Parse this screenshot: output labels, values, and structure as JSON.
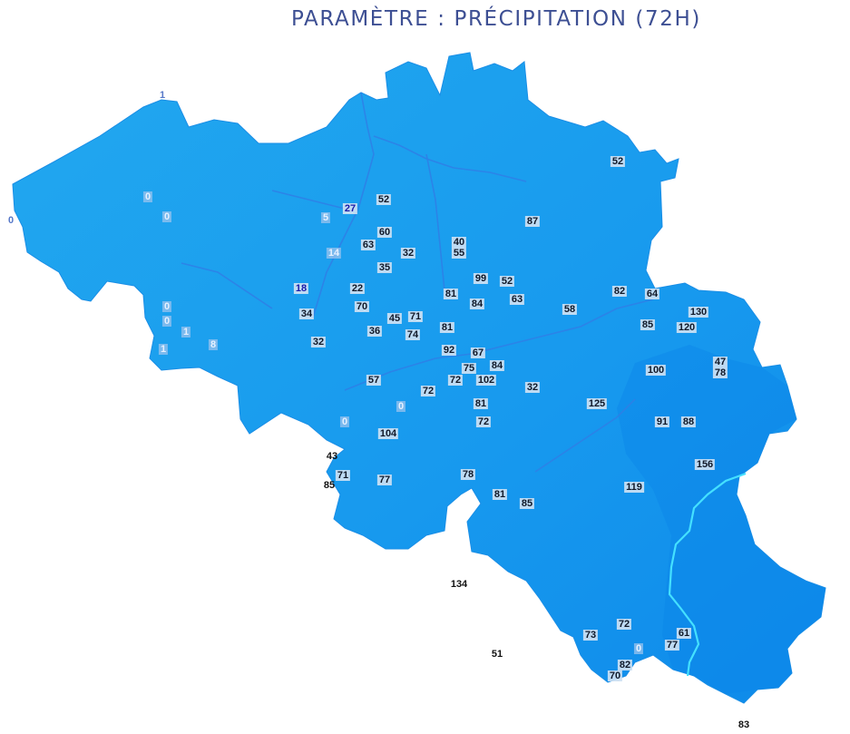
{
  "title": "PARAMÈTRE : PRÉCIPITATION (72H)",
  "colors": {
    "land": "#1ea3ef",
    "land_dark": "#0b86e8",
    "river": "#2f7fe6",
    "border_lux": "#44e0ff",
    "background": "#ffffff",
    "title": "#3d4f93"
  },
  "stations": [
    {
      "value": "1",
      "style": "plainblue"
    },
    {
      "value": "0",
      "style": "plainblue"
    },
    {
      "value": "0",
      "style": "faint"
    },
    {
      "value": "0",
      "style": "faint"
    },
    {
      "value": "52",
      "style": "dark"
    },
    {
      "value": "27",
      "style": "navy"
    },
    {
      "value": "5",
      "style": "faint"
    },
    {
      "value": "60",
      "style": "dark"
    },
    {
      "value": "63",
      "style": "dark"
    },
    {
      "value": "14",
      "style": "faint"
    },
    {
      "value": "32",
      "style": "dark"
    },
    {
      "value": "35",
      "style": "dark"
    },
    {
      "value": "40",
      "style": "dark"
    },
    {
      "value": "55",
      "style": "dark"
    },
    {
      "value": "87",
      "style": "dark"
    },
    {
      "value": "52",
      "style": "dark"
    },
    {
      "value": "18",
      "style": "navy"
    },
    {
      "value": "22",
      "style": "dark"
    },
    {
      "value": "99",
      "style": "dark"
    },
    {
      "value": "52",
      "style": "dark"
    },
    {
      "value": "81",
      "style": "dark"
    },
    {
      "value": "63",
      "style": "dark"
    },
    {
      "value": "84",
      "style": "dark"
    },
    {
      "value": "82",
      "style": "dark"
    },
    {
      "value": "64",
      "style": "dark"
    },
    {
      "value": "0",
      "style": "faint"
    },
    {
      "value": "0",
      "style": "faint"
    },
    {
      "value": "1",
      "style": "faint"
    },
    {
      "value": "1",
      "style": "faint"
    },
    {
      "value": "8",
      "style": "faint"
    },
    {
      "value": "34",
      "style": "dark"
    },
    {
      "value": "32",
      "style": "dark"
    },
    {
      "value": "70",
      "style": "dark"
    },
    {
      "value": "36",
      "style": "dark"
    },
    {
      "value": "45",
      "style": "dark"
    },
    {
      "value": "71",
      "style": "dark"
    },
    {
      "value": "74",
      "style": "dark"
    },
    {
      "value": "81",
      "style": "dark"
    },
    {
      "value": "58",
      "style": "dark"
    },
    {
      "value": "130",
      "style": "dark"
    },
    {
      "value": "85",
      "style": "dark"
    },
    {
      "value": "120",
      "style": "dark"
    },
    {
      "value": "92",
      "style": "dark"
    },
    {
      "value": "67",
      "style": "dark"
    },
    {
      "value": "84",
      "style": "dark"
    },
    {
      "value": "75",
      "style": "dark"
    },
    {
      "value": "72",
      "style": "dark"
    },
    {
      "value": "102",
      "style": "dark"
    },
    {
      "value": "57",
      "style": "dark"
    },
    {
      "value": "32",
      "style": "dark"
    },
    {
      "value": "100",
      "style": "dark"
    },
    {
      "value": "47",
      "style": "dark"
    },
    {
      "value": "78",
      "style": "dark"
    },
    {
      "value": "72",
      "style": "dark"
    },
    {
      "value": "0",
      "style": "faint"
    },
    {
      "value": "81",
      "style": "dark"
    },
    {
      "value": "125",
      "style": "dark"
    },
    {
      "value": "72",
      "style": "dark"
    },
    {
      "value": "91",
      "style": "dark"
    },
    {
      "value": "88",
      "style": "dark"
    },
    {
      "value": "0",
      "style": "faint"
    },
    {
      "value": "104",
      "style": "dark"
    },
    {
      "value": "43",
      "style": "plain"
    },
    {
      "value": "156",
      "style": "dark"
    },
    {
      "value": "71",
      "style": "dark"
    },
    {
      "value": "85",
      "style": "plain"
    },
    {
      "value": "77",
      "style": "dark"
    },
    {
      "value": "78",
      "style": "dark"
    },
    {
      "value": "119",
      "style": "dark"
    },
    {
      "value": "81",
      "style": "dark"
    },
    {
      "value": "85",
      "style": "dark"
    },
    {
      "value": "134",
      "style": "plain"
    },
    {
      "value": "72",
      "style": "dark"
    },
    {
      "value": "73",
      "style": "dark"
    },
    {
      "value": "61",
      "style": "dark"
    },
    {
      "value": "77",
      "style": "dark"
    },
    {
      "value": "0",
      "style": "faint"
    },
    {
      "value": "51",
      "style": "plain"
    },
    {
      "value": "82",
      "style": "dark"
    },
    {
      "value": "70",
      "style": "dark"
    },
    {
      "value": "83",
      "style": "plain"
    }
  ]
}
